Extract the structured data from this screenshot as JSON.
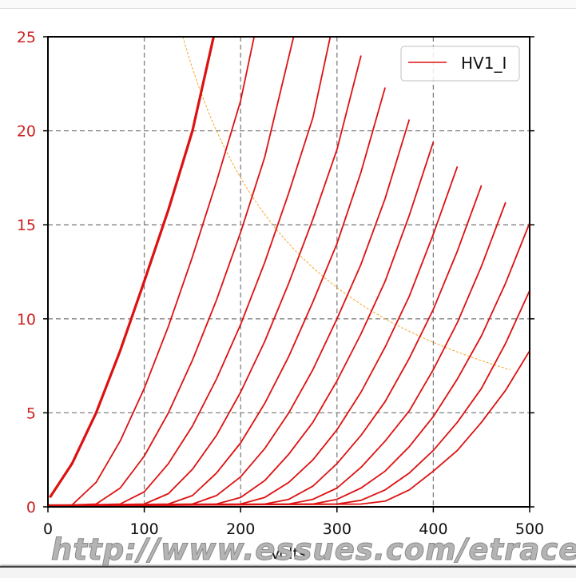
{
  "chart_data": {
    "type": "line",
    "title": "",
    "xlabel": "Volts",
    "ylabel": "",
    "xlim": [
      0,
      500
    ],
    "ylim": [
      0,
      25
    ],
    "grid": true,
    "legend_position": "upper right",
    "x_ticks": [
      "0",
      "100",
      "200",
      "300",
      "400",
      "500"
    ],
    "y_ticks": [
      "0",
      "5",
      "10",
      "15",
      "20",
      "25"
    ],
    "legend": [
      {
        "label": "HV1_I",
        "color": "#dd1111"
      }
    ],
    "load_line": {
      "name": "max-dissipation-hyperbola",
      "color": "#f5a623",
      "power_watts": 3.5,
      "v_range": [
        140,
        480
      ]
    },
    "series": [
      {
        "name": "HV1_I",
        "points": [
          [
            2,
            0.5
          ],
          [
            25,
            2.3
          ],
          [
            50,
            5.0
          ],
          [
            75,
            8.3
          ],
          [
            100,
            12.0
          ],
          [
            125,
            15.8
          ],
          [
            150,
            20.0
          ],
          [
            172,
            25.0
          ]
        ]
      },
      {
        "name": "HV1_I",
        "points": [
          [
            0,
            0.1
          ],
          [
            25,
            0.1
          ],
          [
            50,
            1.3
          ],
          [
            75,
            3.5
          ],
          [
            100,
            6.3
          ],
          [
            125,
            9.6
          ],
          [
            150,
            13.3
          ],
          [
            175,
            17.3
          ],
          [
            200,
            21.6
          ],
          [
            214,
            25.0
          ]
        ]
      },
      {
        "name": "HV1_I",
        "points": [
          [
            0,
            0.05
          ],
          [
            50,
            0.15
          ],
          [
            75,
            1.0
          ],
          [
            100,
            2.7
          ],
          [
            125,
            5.0
          ],
          [
            150,
            7.8
          ],
          [
            175,
            11.0
          ],
          [
            200,
            14.6
          ],
          [
            225,
            18.6
          ],
          [
            255,
            25.0
          ]
        ]
      },
      {
        "name": "HV1_I",
        "points": [
          [
            0,
            0.05
          ],
          [
            75,
            0.15
          ],
          [
            100,
            0.8
          ],
          [
            125,
            2.3
          ],
          [
            150,
            4.3
          ],
          [
            175,
            6.8
          ],
          [
            200,
            9.7
          ],
          [
            225,
            13.0
          ],
          [
            250,
            16.7
          ],
          [
            275,
            20.7
          ],
          [
            293,
            25.0
          ]
        ]
      },
      {
        "name": "HV1_I",
        "points": [
          [
            0,
            0.05
          ],
          [
            100,
            0.15
          ],
          [
            125,
            0.7
          ],
          [
            150,
            2.0
          ],
          [
            175,
            3.8
          ],
          [
            200,
            6.1
          ],
          [
            225,
            8.8
          ],
          [
            250,
            11.9
          ],
          [
            275,
            15.3
          ],
          [
            300,
            19.0
          ],
          [
            325,
            24.0
          ]
        ]
      },
      {
        "name": "HV1_I",
        "points": [
          [
            0,
            0.05
          ],
          [
            125,
            0.15
          ],
          [
            150,
            0.6
          ],
          [
            175,
            1.8
          ],
          [
            200,
            3.4
          ],
          [
            225,
            5.5
          ],
          [
            250,
            8.0
          ],
          [
            275,
            10.9
          ],
          [
            300,
            14.0
          ],
          [
            325,
            17.8
          ],
          [
            350,
            22.3
          ]
        ]
      },
      {
        "name": "HV1_I",
        "points": [
          [
            0,
            0.05
          ],
          [
            150,
            0.15
          ],
          [
            175,
            0.6
          ],
          [
            200,
            1.6
          ],
          [
            225,
            3.1
          ],
          [
            250,
            5.0
          ],
          [
            275,
            7.3
          ],
          [
            300,
            10.0
          ],
          [
            325,
            12.9
          ],
          [
            350,
            16.4
          ],
          [
            375,
            20.6
          ]
        ]
      },
      {
        "name": "HV1_I",
        "points": [
          [
            0,
            0.05
          ],
          [
            175,
            0.15
          ],
          [
            200,
            0.5
          ],
          [
            225,
            1.4
          ],
          [
            250,
            2.8
          ],
          [
            275,
            4.5
          ],
          [
            300,
            6.7
          ],
          [
            325,
            9.2
          ],
          [
            350,
            12.0
          ],
          [
            375,
            15.5
          ],
          [
            400,
            19.4
          ]
        ]
      },
      {
        "name": "HV1_I",
        "points": [
          [
            0,
            0.05
          ],
          [
            200,
            0.15
          ],
          [
            225,
            0.5
          ],
          [
            250,
            1.3
          ],
          [
            275,
            2.5
          ],
          [
            300,
            4.1
          ],
          [
            325,
            6.1
          ],
          [
            350,
            8.5
          ],
          [
            375,
            11.2
          ],
          [
            400,
            14.5
          ],
          [
            425,
            18.1
          ]
        ]
      },
      {
        "name": "HV1_I",
        "points": [
          [
            0,
            0.05
          ],
          [
            225,
            0.15
          ],
          [
            250,
            0.4
          ],
          [
            275,
            1.1
          ],
          [
            300,
            2.3
          ],
          [
            325,
            3.8
          ],
          [
            350,
            5.6
          ],
          [
            375,
            7.9
          ],
          [
            400,
            10.5
          ],
          [
            425,
            13.6
          ],
          [
            450,
            17.1
          ]
        ]
      },
      {
        "name": "HV1_I",
        "points": [
          [
            0,
            0.05
          ],
          [
            250,
            0.15
          ],
          [
            275,
            0.4
          ],
          [
            300,
            1.0
          ],
          [
            325,
            2.1
          ],
          [
            350,
            3.5
          ],
          [
            375,
            5.1
          ],
          [
            400,
            7.3
          ],
          [
            425,
            9.8
          ],
          [
            450,
            12.8
          ],
          [
            475,
            16.2
          ]
        ]
      },
      {
        "name": "HV1_I",
        "points": [
          [
            0,
            0.05
          ],
          [
            275,
            0.15
          ],
          [
            300,
            0.4
          ],
          [
            325,
            1.0
          ],
          [
            350,
            1.9
          ],
          [
            375,
            3.2
          ],
          [
            400,
            4.8
          ],
          [
            425,
            6.8
          ],
          [
            450,
            9.1
          ],
          [
            475,
            11.9
          ],
          [
            500,
            15.1
          ]
        ]
      },
      {
        "name": "HV1_I",
        "points": [
          [
            0,
            0.05
          ],
          [
            300,
            0.15
          ],
          [
            325,
            0.35
          ],
          [
            350,
            0.9
          ],
          [
            375,
            1.8
          ],
          [
            400,
            3.0
          ],
          [
            425,
            4.5
          ],
          [
            450,
            6.3
          ],
          [
            475,
            8.7
          ],
          [
            500,
            11.5
          ]
        ]
      },
      {
        "name": "HV1_I",
        "points": [
          [
            0,
            0.05
          ],
          [
            325,
            0.15
          ],
          [
            350,
            0.3
          ],
          [
            375,
            0.9
          ],
          [
            400,
            1.9
          ],
          [
            425,
            3.0
          ],
          [
            450,
            4.5
          ],
          [
            475,
            6.2
          ],
          [
            500,
            8.3
          ]
        ]
      }
    ]
  },
  "page": {
    "watermark": "http://www.essues.com/etrace",
    "xlabel": "Volts",
    "legend_label": "HV1_I"
  }
}
